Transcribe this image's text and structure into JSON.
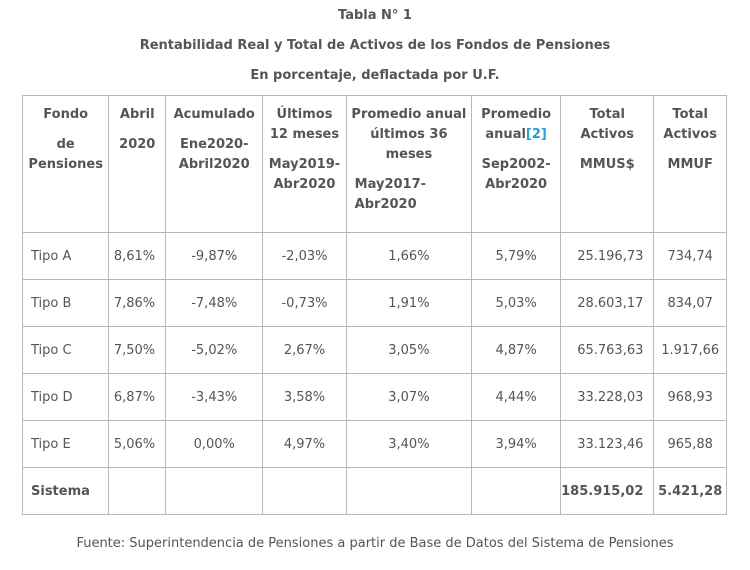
{
  "title": "Tabla N° 1",
  "subtitle": "Rentabilidad Real y Total de Activos de los Fondos de Pensiones",
  "subtitle2": "En porcentaje, deflactada por U.F.",
  "headers": {
    "fondo": [
      "Fondo",
      "de",
      "Pensiones"
    ],
    "abril": [
      "Abril",
      "2020"
    ],
    "acumulado": [
      "Acumulado",
      "Ene2020-",
      "Abril2020"
    ],
    "ultimos": [
      "Últimos",
      "12 meses",
      "May2019-",
      "Abr2020"
    ],
    "promedio36": [
      "Promedio anual",
      "últimos 36",
      "meses",
      "May2017-",
      "Abr2020"
    ],
    "promedio": [
      "Promedio",
      "anual",
      "[2]",
      "Sep2002-",
      "Abr2020"
    ],
    "total_mmus": [
      "Total",
      "Activos",
      "MMUS$"
    ],
    "total_mmuf": [
      "Total",
      "Activos",
      "MMUF"
    ]
  },
  "rows": [
    {
      "fondo": "Tipo A",
      "abril": "8,61%",
      "acumulado": "-9,87%",
      "ultimos": "-2,03%",
      "promedio36": "1,66%",
      "promedio": "5,79%",
      "mmus": "25.196,73",
      "mmuf": "734,74"
    },
    {
      "fondo": "Tipo B",
      "abril": "7,86%",
      "acumulado": "-7,48%",
      "ultimos": "-0,73%",
      "promedio36": "1,91%",
      "promedio": "5,03%",
      "mmus": "28.603,17",
      "mmuf": "834,07"
    },
    {
      "fondo": "Tipo C",
      "abril": "7,50%",
      "acumulado": "-5,02%",
      "ultimos": "2,67%",
      "promedio36": "3,05%",
      "promedio": "4,87%",
      "mmus": "65.763,63",
      "mmuf": "1.917,66"
    },
    {
      "fondo": "Tipo D",
      "abril": "6,87%",
      "acumulado": "-3,43%",
      "ultimos": "3,58%",
      "promedio36": "3,07%",
      "promedio": "4,44%",
      "mmus": "33.228,03",
      "mmuf": "968,93"
    },
    {
      "fondo": "Tipo E",
      "abril": "5,06%",
      "acumulado": "0,00%",
      "ultimos": "4,97%",
      "promedio36": "3,40%",
      "promedio": "3,94%",
      "mmus": "33.123,46",
      "mmuf": "965,88"
    }
  ],
  "sistema": {
    "label": "Sistema",
    "mmus": "185.915,02",
    "mmuf": "5.421,28"
  },
  "source": "Fuente: Superintendencia de Pensiones a partir de Base de Datos del Sistema de Pensiones",
  "colors": {
    "text": "#555555",
    "border": "#b8b8b8",
    "link": "#2a9fd6"
  }
}
